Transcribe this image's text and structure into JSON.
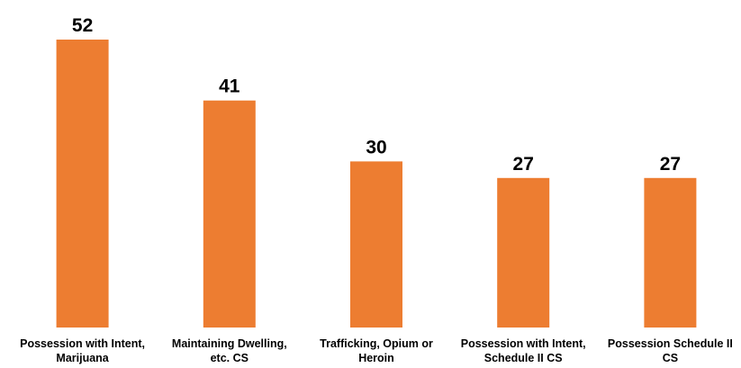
{
  "chart_data": {
    "type": "bar",
    "categories": [
      [
        "Possession with Intent,",
        "Marijuana"
      ],
      [
        "Maintaining Dwelling,",
        "etc. CS"
      ],
      [
        "Trafficking, Opium or",
        "Heroin"
      ],
      [
        "Possession with Intent,",
        "Schedule II CS"
      ],
      [
        "Possession Schedule II",
        "CS"
      ]
    ],
    "values": [
      52,
      41,
      30,
      27,
      27
    ],
    "data_labels": [
      "52",
      "41",
      "30",
      "27",
      "27"
    ],
    "bar_color": "#ED7D31",
    "title": "",
    "xlabel": "",
    "ylabel": "",
    "ylim": [
      0,
      52
    ],
    "grid": false,
    "legend": "none"
  }
}
